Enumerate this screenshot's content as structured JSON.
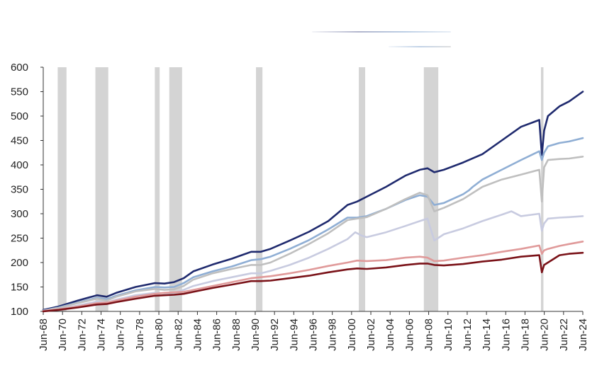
{
  "chart_data": {
    "type": "line",
    "title": "",
    "xlabel": "",
    "ylabel": "",
    "ylim": [
      100,
      600
    ],
    "y_ticks": [
      "100",
      "150",
      "200",
      "250",
      "300",
      "350",
      "400",
      "450",
      "500",
      "550",
      "600"
    ],
    "x_range": [
      1968.42,
      2024.42
    ],
    "x_ticks": [
      {
        "label": "Jun-68",
        "x": 1968.42
      },
      {
        "label": "Jun-70",
        "x": 1970.42
      },
      {
        "label": "Jun-72",
        "x": 1972.42
      },
      {
        "label": "Jun-74",
        "x": 1974.42
      },
      {
        "label": "Jun-76",
        "x": 1976.42
      },
      {
        "label": "Jun-78",
        "x": 1978.42
      },
      {
        "label": "Jun-80",
        "x": 1980.42
      },
      {
        "label": "Jun-82",
        "x": 1982.42
      },
      {
        "label": "Jun-84",
        "x": 1984.42
      },
      {
        "label": "Jun-86",
        "x": 1986.42
      },
      {
        "label": "Jun-88",
        "x": 1988.42
      },
      {
        "label": "Jun-90",
        "x": 1990.42
      },
      {
        "label": "Jun-92",
        "x": 1992.42
      },
      {
        "label": "Jun-94",
        "x": 1994.42
      },
      {
        "label": "Jun-96",
        "x": 1996.42
      },
      {
        "label": "Jun-98",
        "x": 1998.42
      },
      {
        "label": "Jun-00",
        "x": 2000.42
      },
      {
        "label": "Jun-02",
        "x": 2002.42
      },
      {
        "label": "Jun-04",
        "x": 2004.42
      },
      {
        "label": "Jun-06",
        "x": 2006.42
      },
      {
        "label": "Jun-08",
        "x": 2008.42
      },
      {
        "label": "Jun-10",
        "x": 2010.42
      },
      {
        "label": "Jun-12",
        "x": 2012.42
      },
      {
        "label": "Jun-14",
        "x": 2014.42
      },
      {
        "label": "Jun-16",
        "x": 2016.42
      },
      {
        "label": "Jun-18",
        "x": 2018.42
      },
      {
        "label": "Jun-20",
        "x": 2020.42
      },
      {
        "label": "Jun-22",
        "x": 2022.42
      },
      {
        "label": "Jun-24",
        "x": 2024.42
      }
    ],
    "recession_bands": [
      [
        1969.92,
        1970.83
      ],
      [
        1973.83,
        1975.17
      ],
      [
        1980.0,
        1980.5
      ],
      [
        1981.5,
        1982.83
      ],
      [
        1990.5,
        1991.17
      ],
      [
        2001.17,
        2001.83
      ],
      [
        2007.92,
        2009.42
      ],
      [
        2020.08,
        2020.33
      ]
    ],
    "grid": false,
    "legend": "not legible",
    "series": [
      {
        "color": "#1f2a6e",
        "points": [
          [
            1968.42,
            103
          ],
          [
            1970,
            110
          ],
          [
            1972,
            122
          ],
          [
            1974,
            133
          ],
          [
            1975,
            130
          ],
          [
            1976,
            138
          ],
          [
            1978,
            150
          ],
          [
            1980,
            158
          ],
          [
            1981,
            157
          ],
          [
            1982,
            160
          ],
          [
            1983,
            168
          ],
          [
            1984,
            182
          ],
          [
            1986,
            196
          ],
          [
            1988,
            208
          ],
          [
            1989,
            215
          ],
          [
            1990,
            222
          ],
          [
            1991,
            222
          ],
          [
            1992,
            228
          ],
          [
            1994,
            245
          ],
          [
            1996,
            263
          ],
          [
            1998,
            285
          ],
          [
            2000,
            318
          ],
          [
            2001,
            325
          ],
          [
            2002,
            335
          ],
          [
            2004,
            355
          ],
          [
            2006,
            378
          ],
          [
            2007.5,
            390
          ],
          [
            2008.3,
            393
          ],
          [
            2009,
            385
          ],
          [
            2010,
            390
          ],
          [
            2012,
            405
          ],
          [
            2014,
            422
          ],
          [
            2016,
            450
          ],
          [
            2018,
            478
          ],
          [
            2019.9,
            492
          ],
          [
            2020.17,
            420
          ],
          [
            2020.4,
            470
          ],
          [
            2020.8,
            500
          ],
          [
            2022,
            520
          ],
          [
            2023,
            530
          ],
          [
            2024.42,
            550
          ]
        ]
      },
      {
        "color": "#8faed4",
        "points": [
          [
            1968.42,
            102
          ],
          [
            1970,
            108
          ],
          [
            1972,
            118
          ],
          [
            1974,
            128
          ],
          [
            1975,
            125
          ],
          [
            1976,
            132
          ],
          [
            1978,
            143
          ],
          [
            1980,
            150
          ],
          [
            1981,
            149
          ],
          [
            1982,
            150
          ],
          [
            1983,
            158
          ],
          [
            1984,
            170
          ],
          [
            1986,
            182
          ],
          [
            1988,
            192
          ],
          [
            1990,
            205
          ],
          [
            1991,
            207
          ],
          [
            1992,
            212
          ],
          [
            1994,
            228
          ],
          [
            1996,
            246
          ],
          [
            1998,
            268
          ],
          [
            2000,
            292
          ],
          [
            2001,
            292
          ],
          [
            2002,
            295
          ],
          [
            2004,
            310
          ],
          [
            2006,
            328
          ],
          [
            2007.5,
            338
          ],
          [
            2008.3,
            335
          ],
          [
            2009,
            318
          ],
          [
            2010,
            322
          ],
          [
            2012,
            340
          ],
          [
            2012.6,
            348
          ],
          [
            2013,
            355
          ],
          [
            2014,
            370
          ],
          [
            2016,
            390
          ],
          [
            2018,
            410
          ],
          [
            2019.9,
            428
          ],
          [
            2020.17,
            410
          ],
          [
            2020.4,
            425
          ],
          [
            2020.8,
            438
          ],
          [
            2022,
            445
          ],
          [
            2023,
            448
          ],
          [
            2024.42,
            455
          ]
        ]
      },
      {
        "color": "#bfbfbf",
        "points": [
          [
            1968.42,
            101
          ],
          [
            1970,
            107
          ],
          [
            1972,
            117
          ],
          [
            1974,
            126
          ],
          [
            1975,
            122
          ],
          [
            1976,
            130
          ],
          [
            1978,
            141
          ],
          [
            1980,
            146
          ],
          [
            1981,
            144
          ],
          [
            1982,
            145
          ],
          [
            1983,
            152
          ],
          [
            1984,
            165
          ],
          [
            1986,
            178
          ],
          [
            1988,
            187
          ],
          [
            1990,
            195
          ],
          [
            1991,
            195
          ],
          [
            1992,
            200
          ],
          [
            1994,
            218
          ],
          [
            1996,
            238
          ],
          [
            1998,
            260
          ],
          [
            2000,
            287
          ],
          [
            2001,
            290
          ],
          [
            2002,
            293
          ],
          [
            2004,
            310
          ],
          [
            2006,
            330
          ],
          [
            2007.5,
            343
          ],
          [
            2008.3,
            338
          ],
          [
            2009,
            305
          ],
          [
            2010,
            312
          ],
          [
            2012,
            330
          ],
          [
            2014,
            355
          ],
          [
            2016,
            370
          ],
          [
            2018,
            380
          ],
          [
            2019.9,
            390
          ],
          [
            2020.17,
            325
          ],
          [
            2020.4,
            395
          ],
          [
            2020.8,
            410
          ],
          [
            2022,
            412
          ],
          [
            2023,
            413
          ],
          [
            2024.42,
            417
          ]
        ]
      },
      {
        "color": "#c8cbe0",
        "points": [
          [
            1968.42,
            101
          ],
          [
            1970,
            104
          ],
          [
            1972,
            112
          ],
          [
            1974,
            120
          ],
          [
            1975,
            118
          ],
          [
            1976,
            124
          ],
          [
            1978,
            133
          ],
          [
            1980,
            138
          ],
          [
            1981,
            137
          ],
          [
            1982,
            138
          ],
          [
            1983,
            144
          ],
          [
            1984,
            152
          ],
          [
            1986,
            162
          ],
          [
            1988,
            170
          ],
          [
            1990,
            178
          ],
          [
            1991,
            178
          ],
          [
            1992,
            183
          ],
          [
            1994,
            195
          ],
          [
            1996,
            210
          ],
          [
            1998,
            228
          ],
          [
            2000,
            248
          ],
          [
            2000.8,
            262
          ],
          [
            2001.5,
            255
          ],
          [
            2002,
            252
          ],
          [
            2004,
            262
          ],
          [
            2006,
            275
          ],
          [
            2007.5,
            285
          ],
          [
            2008.3,
            290
          ],
          [
            2009,
            245
          ],
          [
            2010,
            258
          ],
          [
            2012,
            270
          ],
          [
            2014,
            285
          ],
          [
            2016,
            298
          ],
          [
            2017,
            305
          ],
          [
            2018,
            295
          ],
          [
            2019.9,
            300
          ],
          [
            2020.17,
            265
          ],
          [
            2020.4,
            280
          ],
          [
            2020.8,
            290
          ],
          [
            2022,
            292
          ],
          [
            2023,
            293
          ],
          [
            2024.42,
            295
          ]
        ]
      },
      {
        "color": "#e09a9a",
        "points": [
          [
            1968.42,
            101
          ],
          [
            1970,
            104
          ],
          [
            1972,
            110
          ],
          [
            1974,
            117
          ],
          [
            1975,
            118
          ],
          [
            1976,
            122
          ],
          [
            1978,
            130
          ],
          [
            1980,
            136
          ],
          [
            1981,
            138
          ],
          [
            1982,
            139
          ],
          [
            1983,
            140
          ],
          [
            1984,
            144
          ],
          [
            1986,
            152
          ],
          [
            1988,
            160
          ],
          [
            1990,
            168
          ],
          [
            1991,
            170
          ],
          [
            1992,
            172
          ],
          [
            1994,
            178
          ],
          [
            1996,
            185
          ],
          [
            1998,
            193
          ],
          [
            2000,
            200
          ],
          [
            2001,
            204
          ],
          [
            2002,
            203
          ],
          [
            2004,
            205
          ],
          [
            2006,
            210
          ],
          [
            2007.5,
            212
          ],
          [
            2008.3,
            210
          ],
          [
            2009,
            203
          ],
          [
            2010,
            204
          ],
          [
            2012,
            210
          ],
          [
            2014,
            215
          ],
          [
            2016,
            222
          ],
          [
            2018,
            228
          ],
          [
            2019.9,
            235
          ],
          [
            2020.17,
            218
          ],
          [
            2020.4,
            225
          ],
          [
            2020.8,
            228
          ],
          [
            2022,
            234
          ],
          [
            2023,
            238
          ],
          [
            2024.42,
            243
          ]
        ]
      },
      {
        "color": "#7a1218",
        "points": [
          [
            1968.42,
            100
          ],
          [
            1970,
            103
          ],
          [
            1972,
            108
          ],
          [
            1974,
            114
          ],
          [
            1975,
            115
          ],
          [
            1976,
            119
          ],
          [
            1978,
            126
          ],
          [
            1980,
            132
          ],
          [
            1981,
            133
          ],
          [
            1982,
            134
          ],
          [
            1983,
            136
          ],
          [
            1984,
            140
          ],
          [
            1986,
            148
          ],
          [
            1988,
            155
          ],
          [
            1990,
            162
          ],
          [
            1991,
            162
          ],
          [
            1992,
            163
          ],
          [
            1994,
            168
          ],
          [
            1996,
            173
          ],
          [
            1998,
            180
          ],
          [
            2000,
            186
          ],
          [
            2001,
            188
          ],
          [
            2002,
            187
          ],
          [
            2004,
            190
          ],
          [
            2006,
            195
          ],
          [
            2007.5,
            198
          ],
          [
            2008.3,
            198
          ],
          [
            2009,
            195
          ],
          [
            2010,
            194
          ],
          [
            2012,
            197
          ],
          [
            2014,
            202
          ],
          [
            2016,
            206
          ],
          [
            2018,
            212
          ],
          [
            2019.9,
            215
          ],
          [
            2020.17,
            180
          ],
          [
            2020.4,
            195
          ],
          [
            2020.8,
            200
          ],
          [
            2022,
            215
          ],
          [
            2023,
            218
          ],
          [
            2024.42,
            220
          ]
        ]
      }
    ]
  }
}
